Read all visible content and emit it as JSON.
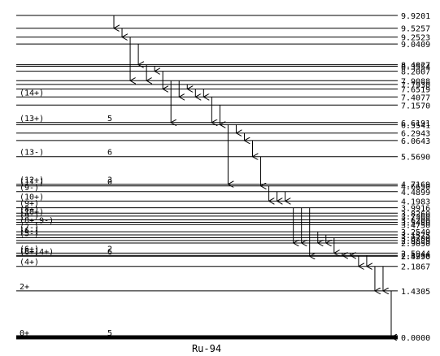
{
  "nucleus": "Ru-94",
  "colors": {
    "line": "#000000",
    "background": "#ffffff"
  },
  "levels": [
    {
      "energy": "0.0000",
      "spin": "0+",
      "mult": "5"
    },
    {
      "energy": "1.4305",
      "spin": "2+",
      "mult": ""
    },
    {
      "energy": "2.1867",
      "spin": "(4+)",
      "mult": ""
    },
    {
      "energy": "2.4990",
      "spin": "(6+,4+)",
      "mult": "6"
    },
    {
      "energy": "2.5236",
      "spin": "(8+)",
      "mult": ""
    },
    {
      "energy": "2.5944",
      "spin": "(6+)",
      "mult": "2"
    },
    {
      "energy": "2.9050",
      "spin": "",
      "mult": ""
    },
    {
      "energy": "2.9839",
      "spin": "",
      "mult": ""
    },
    {
      "energy": "3.0700",
      "spin": "(5-)",
      "mult": ""
    },
    {
      "energy": "3.1575",
      "spin": "(6-)",
      "mult": ""
    },
    {
      "energy": "3.2549",
      "spin": "(7-)",
      "mult": ""
    },
    {
      "energy": "3.4750",
      "spin": "(8+,9-)",
      "mult": ""
    },
    {
      "energy": "3.5450",
      "spin": "",
      "mult": ""
    },
    {
      "energy": "3.6200",
      "spin": "(9-)",
      "mult": ""
    },
    {
      "energy": "3.7360",
      "spin": "(10+)",
      "mult": ""
    },
    {
      "energy": "3.8260",
      "spin": "(8+)",
      "mult": ""
    },
    {
      "energy": "3.9916",
      "spin": "(9+)",
      "mult": ""
    },
    {
      "energy": "4.1983",
      "spin": "(10+)",
      "mult": ""
    },
    {
      "energy": "4.4899",
      "spin": "(9-)",
      "mult": ""
    },
    {
      "energy": "4.6650",
      "spin": "(11-)",
      "mult": "0"
    },
    {
      "energy": "4.7169",
      "spin": "(12+)",
      "mult": "3"
    },
    {
      "energy": "5.5690",
      "spin": "(13-)",
      "mult": "6"
    },
    {
      "energy": "6.0643",
      "spin": "",
      "mult": ""
    },
    {
      "energy": "6.2943",
      "spin": "",
      "mult": ""
    },
    {
      "energy": "6.5541",
      "spin": "",
      "mult": ""
    },
    {
      "energy": "6.6191",
      "spin": "(13+)",
      "mult": "5"
    },
    {
      "energy": "7.1570",
      "spin": "",
      "mult": ""
    },
    {
      "energy": "7.4077",
      "spin": "(14+)",
      "mult": ""
    },
    {
      "energy": "7.6519",
      "spin": "",
      "mult": ""
    },
    {
      "energy": "7.7930",
      "spin": "",
      "mult": ""
    },
    {
      "energy": "7.9088",
      "spin": "",
      "mult": ""
    },
    {
      "energy": "8.2007",
      "spin": "",
      "mult": ""
    },
    {
      "energy": "8.3554",
      "spin": "",
      "mult": ""
    },
    {
      "energy": "8.4027",
      "spin": "",
      "mult": ""
    },
    {
      "energy": "9.0409",
      "spin": "",
      "mult": ""
    },
    {
      "energy": "9.2523",
      "spin": "",
      "mult": ""
    },
    {
      "energy": "9.5257",
      "spin": "",
      "mult": ""
    },
    {
      "energy": "9.9201",
      "spin": "",
      "mult": ""
    }
  ],
  "transitions": [
    {
      "from": "9.9201",
      "to": "9.5257"
    },
    {
      "from": "9.5257",
      "to": "9.2523"
    },
    {
      "from": "9.2523",
      "to": "7.9088"
    },
    {
      "from": "9.0409",
      "to": "8.4027"
    },
    {
      "from": "8.4027",
      "to": "7.9088"
    },
    {
      "from": "8.3554",
      "to": "8.2007"
    },
    {
      "from": "8.2007",
      "to": "7.6519"
    },
    {
      "from": "7.9088",
      "to": "6.6191"
    },
    {
      "from": "7.9088",
      "to": "7.4077"
    },
    {
      "from": "7.7930",
      "to": "7.6519"
    },
    {
      "from": "7.6519",
      "to": "7.4077"
    },
    {
      "from": "7.6519",
      "to": "7.4077"
    },
    {
      "from": "7.4077",
      "to": "6.6191"
    },
    {
      "from": "7.1570",
      "to": "6.5541"
    },
    {
      "from": "6.5541",
      "to": "4.7169"
    },
    {
      "from": "6.5541",
      "to": "6.2943"
    },
    {
      "from": "6.2943",
      "to": "6.0643"
    },
    {
      "from": "6.0643",
      "to": "5.5690"
    },
    {
      "from": "5.5690",
      "to": "4.6650"
    },
    {
      "from": "4.6650",
      "to": "4.1983"
    },
    {
      "from": "4.4899",
      "to": "4.1983"
    },
    {
      "from": "4.4899",
      "to": "4.1983"
    },
    {
      "from": "3.9916",
      "to": "2.9050"
    },
    {
      "from": "3.9916",
      "to": "2.9050"
    },
    {
      "from": "3.9916",
      "to": "2.4990"
    },
    {
      "from": "3.2549",
      "to": "2.9050"
    },
    {
      "from": "3.1575",
      "to": "2.9050"
    },
    {
      "from": "3.0700",
      "to": "2.5944"
    },
    {
      "from": "2.5944",
      "to": "2.5236"
    },
    {
      "from": "2.5944",
      "to": "2.5236"
    },
    {
      "from": "2.4990",
      "to": "2.1867"
    },
    {
      "from": "2.5236",
      "to": "2.1867"
    },
    {
      "from": "2.1867",
      "to": "1.4305"
    },
    {
      "from": "2.1867",
      "to": "1.4305"
    },
    {
      "from": "1.4305",
      "to": "0.0000"
    }
  ]
}
